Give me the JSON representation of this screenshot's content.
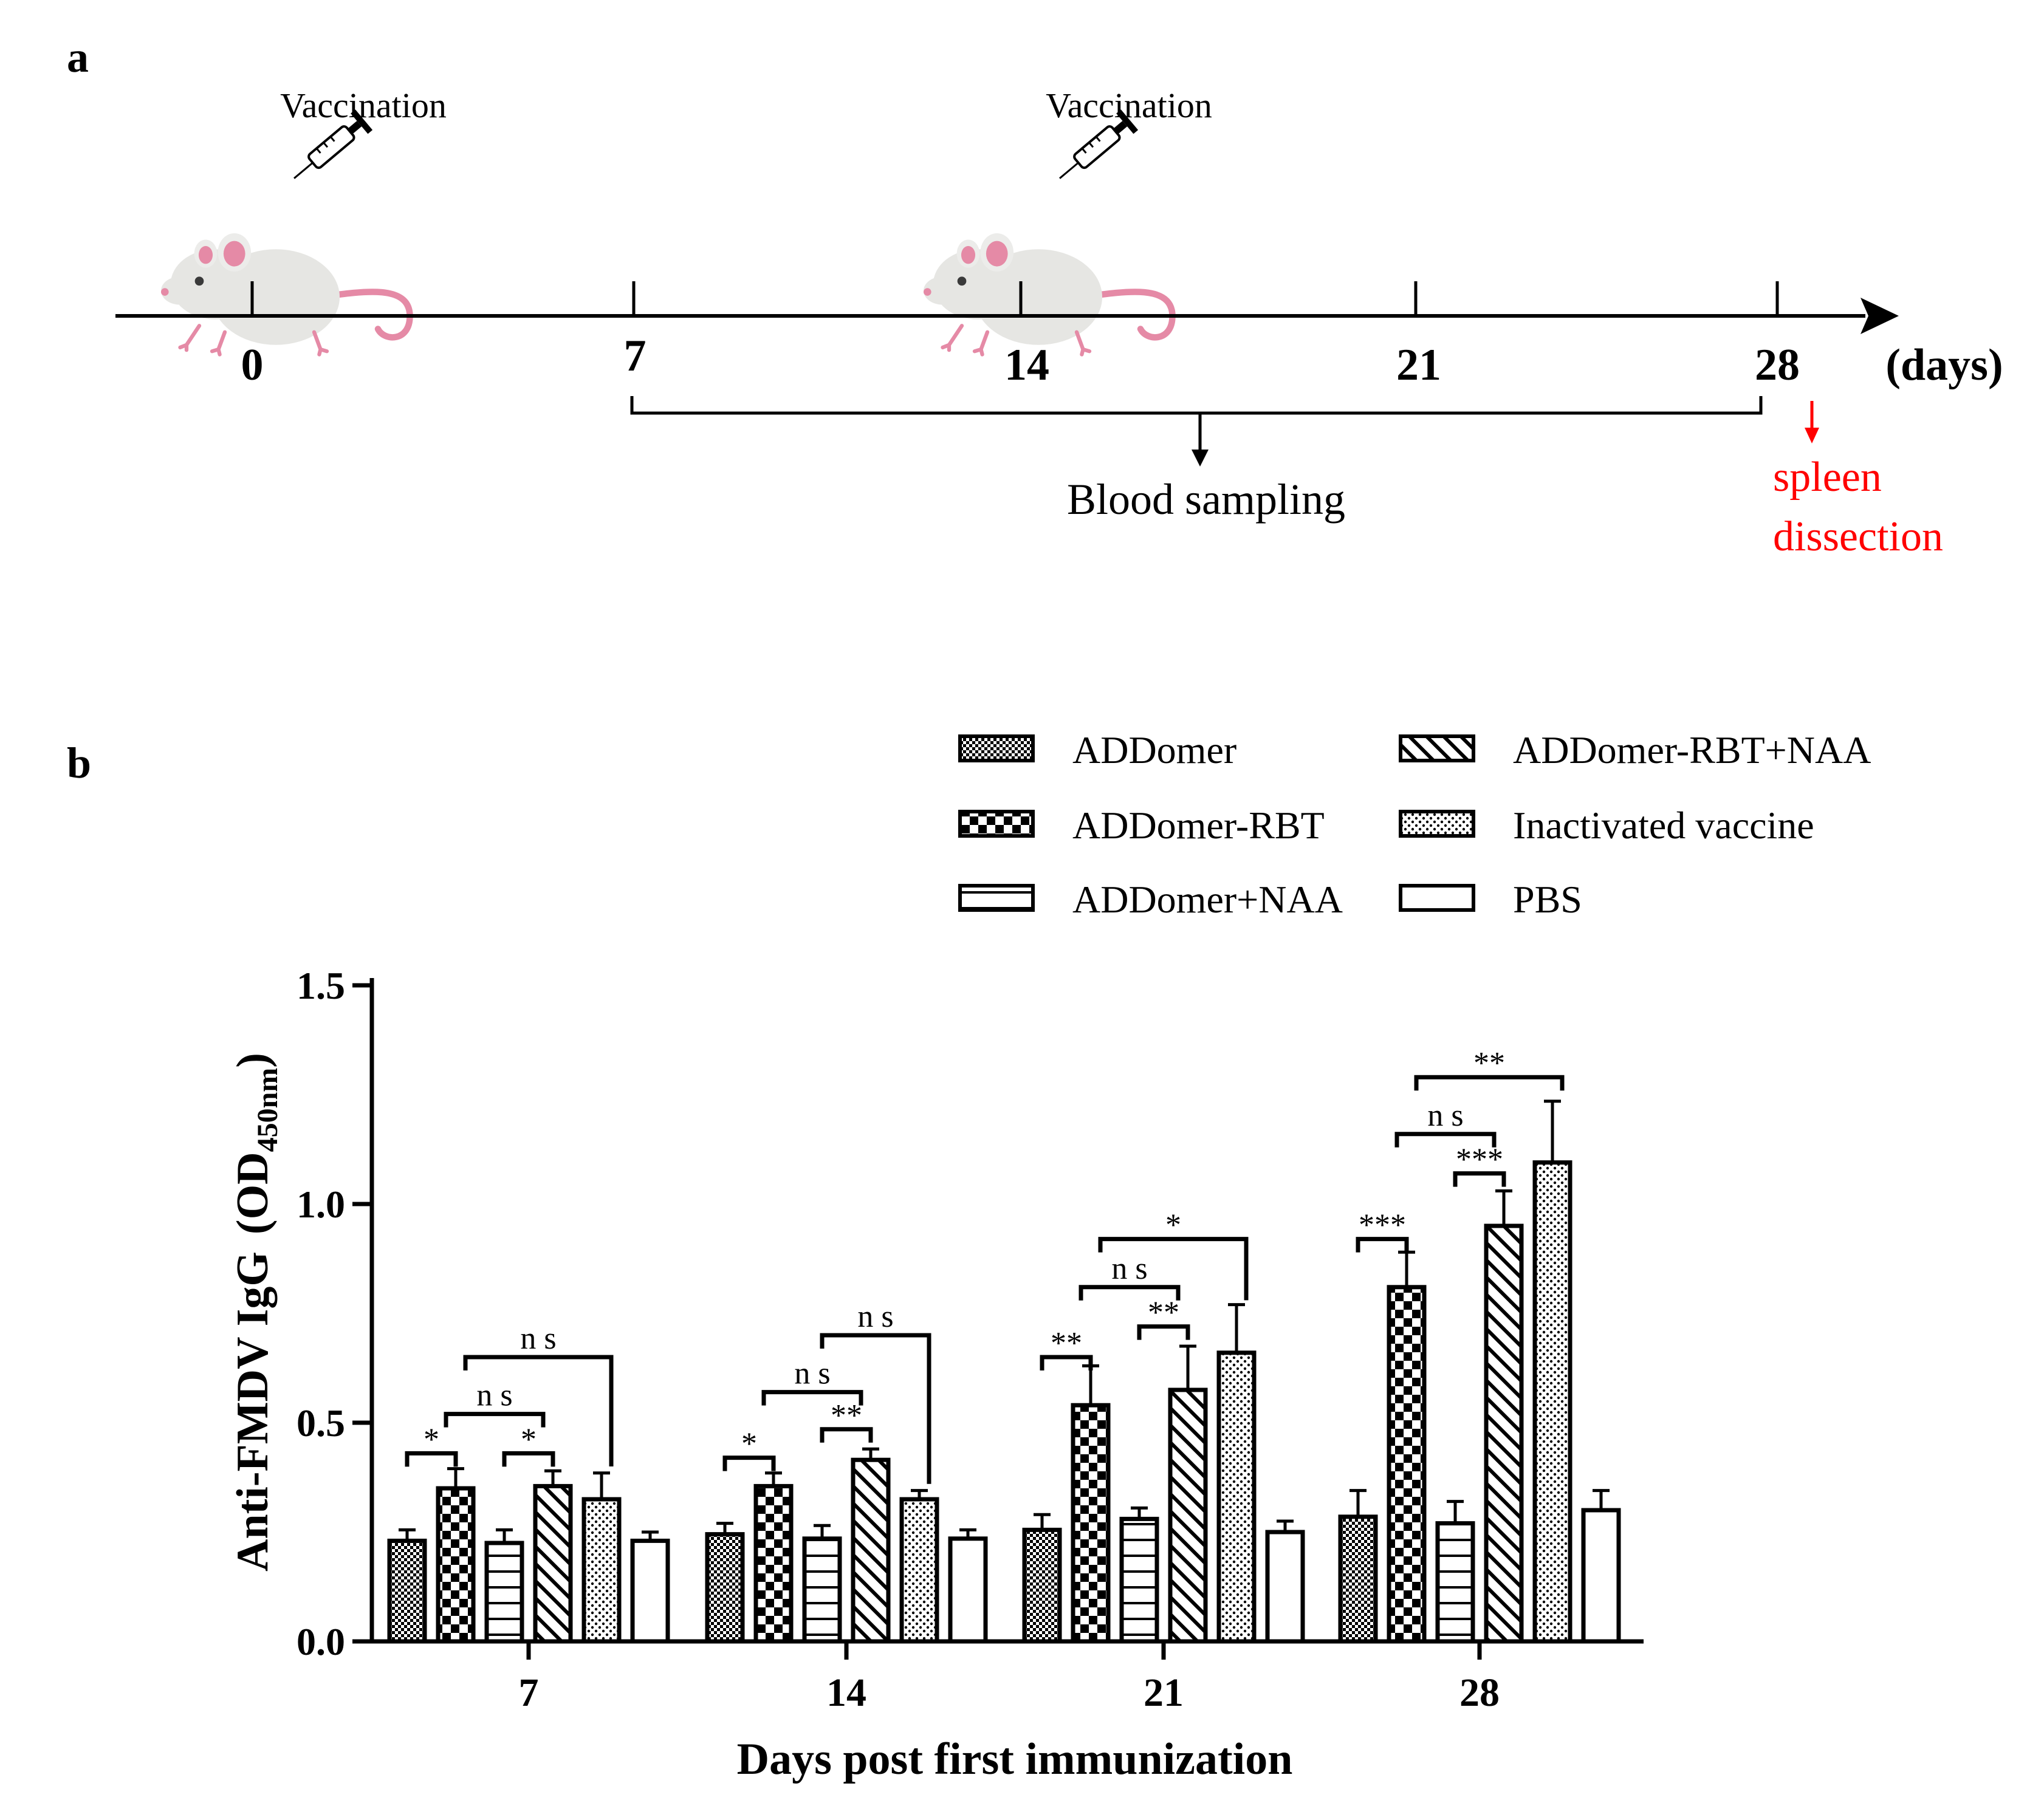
{
  "panel_a": {
    "letter": "a",
    "vaccination_labels": [
      "Vaccination",
      "Vaccination"
    ],
    "timeline_ticks": [
      "0",
      "7",
      "14",
      "21",
      "28"
    ],
    "unit_label": "(days)",
    "blood_sampling": "Blood sampling",
    "spleen_line1": "spleen",
    "spleen_line2": "dissection",
    "spleen_color": "#ff0000"
  },
  "panel_b": {
    "letter": "b"
  },
  "chart_data": {
    "type": "bar",
    "title": "",
    "xlabel": "Days post first immunization",
    "ylabel": "Anti-FMDV IgG",
    "ylabel_paren": "OD",
    "ylabel_sub": "450nm",
    "categories": [
      "7",
      "14",
      "21",
      "28"
    ],
    "ylim": [
      0,
      1.5
    ],
    "yticks": [
      "0.0",
      "0.5",
      "1.0",
      "1.5"
    ],
    "legend_position": "top-right",
    "series": [
      {
        "name": "ADDomer",
        "pattern": "fine-check",
        "values": [
          0.23,
          0.245,
          0.255,
          0.285
        ],
        "errors": [
          0.025,
          0.025,
          0.035,
          0.06
        ]
      },
      {
        "name": "ADDomer-RBT",
        "pattern": "checker",
        "values": [
          0.35,
          0.355,
          0.54,
          0.81
        ],
        "errors": [
          0.045,
          0.03,
          0.09,
          0.08
        ]
      },
      {
        "name": "ADDomer+NAA",
        "pattern": "hlines",
        "values": [
          0.225,
          0.235,
          0.28,
          0.27
        ],
        "errors": [
          0.03,
          0.03,
          0.025,
          0.05
        ]
      },
      {
        "name": "ADDomer-RBT+NAA",
        "pattern": "diagonal",
        "values": [
          0.355,
          0.415,
          0.575,
          0.95
        ],
        "errors": [
          0.035,
          0.025,
          0.1,
          0.08
        ]
      },
      {
        "name": "Inactivated vaccine",
        "pattern": "dots",
        "values": [
          0.325,
          0.325,
          0.66,
          1.095
        ],
        "errors": [
          0.06,
          0.02,
          0.11,
          0.14
        ]
      },
      {
        "name": "PBS",
        "pattern": "none",
        "values": [
          0.23,
          0.235,
          0.25,
          0.3
        ],
        "errors": [
          0.02,
          0.02,
          0.025,
          0.045
        ]
      }
    ],
    "significance": [
      {
        "group": 0,
        "from": 0,
        "to": 1,
        "label": "*",
        "y": 0.43
      },
      {
        "group": 0,
        "from": 2,
        "to": 3,
        "label": "*",
        "y": 0.43
      },
      {
        "group": 0,
        "from": 0.8,
        "to": 2.8,
        "label": "n s",
        "y": 0.52
      },
      {
        "group": 0,
        "from": 1.2,
        "to": 4.2,
        "label": "n s",
        "y": 0.65,
        "drop_to": 0.4
      },
      {
        "group": 1,
        "from": 0,
        "to": 1,
        "label": "*",
        "y": 0.42
      },
      {
        "group": 1,
        "from": 3,
        "to": 2,
        "label": "**",
        "y": 0.485,
        "reverse": true
      },
      {
        "group": 1,
        "from": 0.8,
        "to": 2.8,
        "label": "n s",
        "y": 0.57
      },
      {
        "group": 1,
        "from": 2,
        "to": 4.2,
        "label": "n s",
        "y": 0.7,
        "drop_to": 0.36
      },
      {
        "group": 2,
        "from": 0,
        "to": 1,
        "label": "**",
        "y": 0.65
      },
      {
        "group": 2,
        "from": 2,
        "to": 3,
        "label": "**",
        "y": 0.72
      },
      {
        "group": 2,
        "from": 0.8,
        "to": 2.8,
        "label": "n s",
        "y": 0.81
      },
      {
        "group": 2,
        "from": 1.2,
        "to": 4.2,
        "label": "*",
        "y": 0.92,
        "drop_to": 0.78
      },
      {
        "group": 3,
        "from": 0,
        "to": 1,
        "label": "***",
        "y": 0.92
      },
      {
        "group": 3,
        "from": 2,
        "to": 3,
        "label": "***",
        "y": 1.07
      },
      {
        "group": 3,
        "from": 0.8,
        "to": 2.8,
        "label": "n s",
        "y": 1.16
      },
      {
        "group": 3,
        "from": 1.2,
        "to": 4.2,
        "label": "**",
        "y": 1.29
      }
    ]
  }
}
